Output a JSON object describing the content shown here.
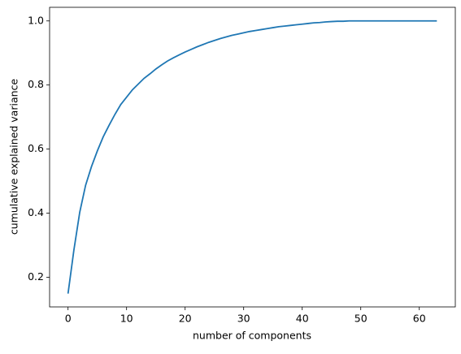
{
  "chart_data": {
    "type": "line",
    "xlabel": "number of components",
    "ylabel": "cumulative explained variance",
    "x": [
      0,
      1,
      2,
      3,
      4,
      5,
      6,
      7,
      8,
      9,
      10,
      11,
      12,
      13,
      14,
      15,
      16,
      17,
      18,
      19,
      20,
      21,
      22,
      23,
      24,
      25,
      26,
      27,
      28,
      29,
      30,
      31,
      32,
      33,
      34,
      35,
      36,
      37,
      38,
      39,
      40,
      41,
      42,
      43,
      44,
      45,
      46,
      47,
      48,
      49,
      50,
      51,
      52,
      53,
      54,
      55,
      56,
      57,
      58,
      59,
      60,
      61,
      62,
      63
    ],
    "values": [
      0.149,
      0.285,
      0.403,
      0.487,
      0.545,
      0.594,
      0.638,
      0.674,
      0.708,
      0.739,
      0.762,
      0.785,
      0.803,
      0.821,
      0.835,
      0.85,
      0.863,
      0.875,
      0.885,
      0.894,
      0.903,
      0.911,
      0.919,
      0.926,
      0.933,
      0.939,
      0.945,
      0.95,
      0.955,
      0.959,
      0.963,
      0.967,
      0.97,
      0.973,
      0.976,
      0.979,
      0.982,
      0.984,
      0.986,
      0.988,
      0.99,
      0.992,
      0.994,
      0.995,
      0.997,
      0.998,
      0.999,
      0.999,
      1.0,
      1.0,
      1.0,
      1.0,
      1.0,
      1.0,
      1.0,
      1.0,
      1.0,
      1.0,
      1.0,
      1.0,
      1.0,
      1.0,
      1.0,
      1.0
    ],
    "color": "#1f77b4",
    "xlim": [
      -3.15,
      66.15
    ],
    "xticks": [
      0,
      10,
      20,
      30,
      40,
      50,
      60
    ],
    "ylim": [
      0.1075,
      1.0425
    ],
    "yticks": [
      0.2,
      0.4,
      0.6,
      0.8,
      {
        "value": 1.0,
        "label": "1.0"
      }
    ]
  }
}
